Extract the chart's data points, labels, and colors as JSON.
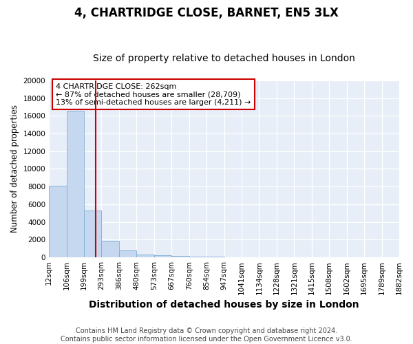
{
  "title1": "4, CHARTRIDGE CLOSE, BARNET, EN5 3LX",
  "title2": "Size of property relative to detached houses in London",
  "xlabel": "Distribution of detached houses by size in London",
  "ylabel": "Number of detached properties",
  "categories": [
    "12sqm",
    "106sqm",
    "199sqm",
    "293sqm",
    "386sqm",
    "480sqm",
    "573sqm",
    "667sqm",
    "760sqm",
    "854sqm",
    "947sqm",
    "1041sqm",
    "1134sqm",
    "1228sqm",
    "1321sqm",
    "1415sqm",
    "1508sqm",
    "1602sqm",
    "1695sqm",
    "1789sqm",
    "1882sqm"
  ],
  "bar_values": [
    8100,
    16600,
    5300,
    1850,
    800,
    350,
    200,
    150,
    100,
    100,
    0,
    0,
    0,
    0,
    0,
    0,
    0,
    0,
    0,
    0
  ],
  "bar_color": "#c5d8ef",
  "bar_edge_color": "#7badd4",
  "background_color": "#e8eef8",
  "annotation_text": "4 CHARTRIDGE CLOSE: 262sqm\n← 87% of detached houses are smaller (28,709)\n13% of semi-detached houses are larger (4,211) →",
  "annotation_box_color": "#ffffff",
  "annotation_box_edge": "#cc0000",
  "footnote": "Contains HM Land Registry data © Crown copyright and database right 2024.\nContains public sector information licensed under the Open Government Licence v3.0.",
  "ylim": [
    0,
    20000
  ],
  "yticks": [
    0,
    2000,
    4000,
    6000,
    8000,
    10000,
    12000,
    14000,
    16000,
    18000,
    20000
  ],
  "title1_fontsize": 12,
  "title2_fontsize": 10,
  "xlabel_fontsize": 10,
  "ylabel_fontsize": 8.5,
  "tick_fontsize": 7.5,
  "footnote_fontsize": 7
}
